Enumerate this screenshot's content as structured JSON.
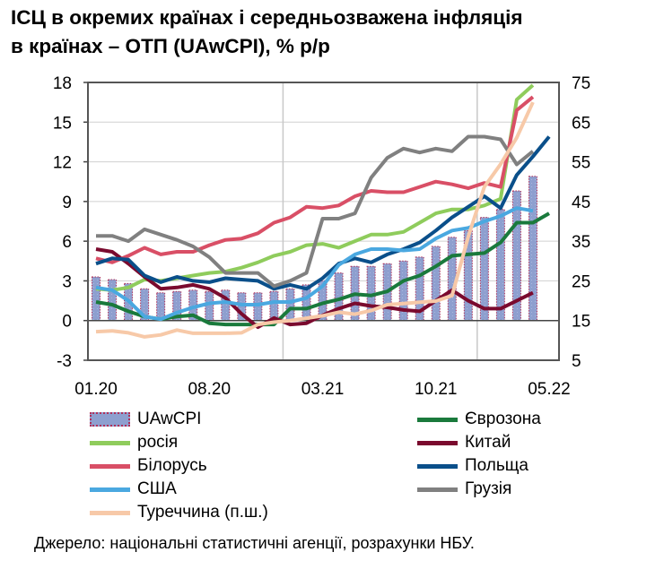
{
  "title_line1": "ІСЦ в окремих країнах і середньозважена інфляція",
  "title_line2": "в країнах – ОТП (UAwCPI), % р/р",
  "source": "Джерело: національні статистичні агенції, розрахунки НБУ.",
  "chart_data": {
    "type": "bar+line",
    "title": "ІСЦ в окремих країнах і середньозважена інфляція в країнах – ОТП (UAwCPI), % р/р",
    "x_tick_labels": [
      "01.20",
      "08.20",
      "03.21",
      "10.21",
      "05.22"
    ],
    "months": [
      "01.20",
      "02.20",
      "03.20",
      "04.20",
      "05.20",
      "06.20",
      "07.20",
      "08.20",
      "09.20",
      "10.20",
      "11.20",
      "12.20",
      "01.21",
      "02.21",
      "03.21",
      "04.21",
      "05.21",
      "06.21",
      "07.21",
      "08.21",
      "09.21",
      "10.21",
      "11.21",
      "12.21",
      "01.22",
      "02.22",
      "03.22",
      "04.22",
      "05.22"
    ],
    "left_axis": {
      "range": [
        -3,
        18
      ],
      "ticks": [
        -3,
        0,
        3,
        6,
        9,
        12,
        15,
        18
      ]
    },
    "right_axis": {
      "range": [
        5,
        75
      ],
      "ticks": [
        5,
        15,
        25,
        35,
        45,
        55,
        65,
        75
      ]
    },
    "grid": true,
    "legend_position": "bottom",
    "series": [
      {
        "name": "UAwCPI",
        "kind": "bar",
        "axis": "left",
        "color": "#8e9fcf",
        "values": [
          3.3,
          3.1,
          2.8,
          2.4,
          2.1,
          2.2,
          2.3,
          2.2,
          2.3,
          2.1,
          2.1,
          2.2,
          2.4,
          2.7,
          3.0,
          3.6,
          4.1,
          4.1,
          4.3,
          4.5,
          4.8,
          5.6,
          6.3,
          6.8,
          7.8,
          8.4,
          9.8,
          10.9
        ]
      },
      {
        "name": "Єврозона",
        "kind": "line",
        "axis": "left",
        "color": "#1a7a3c",
        "values": [
          1.4,
          1.2,
          0.7,
          0.3,
          0.1,
          0.3,
          0.4,
          -0.2,
          -0.3,
          -0.3,
          -0.3,
          -0.3,
          0.9,
          0.9,
          1.3,
          1.6,
          2.0,
          1.9,
          2.2,
          3.0,
          3.4,
          4.1,
          4.9,
          5.0,
          5.1,
          5.9,
          7.4,
          7.4,
          8.1
        ]
      },
      {
        "name": "росія",
        "kind": "line",
        "axis": "left",
        "color": "#8fcc5c",
        "values": [
          2.4,
          2.3,
          2.5,
          3.1,
          3.0,
          3.2,
          3.4,
          3.6,
          3.7,
          4.0,
          4.4,
          4.9,
          5.2,
          5.7,
          5.8,
          5.5,
          6.0,
          6.5,
          6.5,
          6.7,
          7.4,
          8.1,
          8.4,
          8.4,
          8.7,
          9.2,
          16.7,
          17.8
        ]
      },
      {
        "name": "Китай",
        "kind": "line",
        "axis": "left",
        "color": "#7a0a2e",
        "values": [
          5.4,
          5.2,
          4.3,
          3.3,
          2.4,
          2.5,
          2.7,
          2.4,
          1.7,
          0.5,
          -0.5,
          0.2,
          -0.3,
          -0.2,
          0.4,
          0.9,
          1.3,
          1.1,
          1.0,
          0.8,
          0.7,
          1.5,
          2.3,
          1.5,
          0.9,
          0.9,
          1.5,
          2.1
        ]
      },
      {
        "name": "Білорусь",
        "kind": "line",
        "axis": "left",
        "color": "#d94f66",
        "values": [
          4.7,
          4.4,
          4.9,
          5.5,
          5.0,
          5.2,
          5.2,
          5.7,
          6.1,
          6.2,
          6.6,
          7.4,
          7.8,
          8.6,
          8.5,
          8.7,
          9.4,
          9.8,
          9.7,
          9.7,
          10.1,
          10.5,
          10.3,
          10.0,
          10.4,
          10.1,
          15.9,
          16.9
        ]
      },
      {
        "name": "Польща",
        "kind": "line",
        "axis": "left",
        "color": "#0a4f8a",
        "values": [
          4.3,
          4.7,
          4.6,
          3.4,
          2.9,
          3.3,
          3.0,
          2.9,
          3.2,
          3.1,
          3.0,
          2.4,
          2.7,
          2.4,
          3.2,
          4.3,
          4.7,
          4.4,
          5.0,
          5.4,
          5.9,
          6.8,
          7.8,
          8.6,
          9.4,
          8.5,
          11.0,
          12.4,
          13.9
        ]
      },
      {
        "name": "США",
        "kind": "line",
        "axis": "left",
        "color": "#4aa8e0",
        "values": [
          2.5,
          2.3,
          1.5,
          0.3,
          0.1,
          0.6,
          1.0,
          1.3,
          1.4,
          1.2,
          1.2,
          1.4,
          1.4,
          1.7,
          2.6,
          4.2,
          5.0,
          5.4,
          5.4,
          5.3,
          5.4,
          6.2,
          6.8,
          7.0,
          7.5,
          7.9,
          8.5,
          8.3
        ]
      },
      {
        "name": "Грузія",
        "kind": "line",
        "axis": "left",
        "color": "#808080",
        "values": [
          6.4,
          6.4,
          6.0,
          6.9,
          6.5,
          6.1,
          5.6,
          4.8,
          3.6,
          3.6,
          3.6,
          2.6,
          3.0,
          3.6,
          7.7,
          7.7,
          8.1,
          10.8,
          12.3,
          13.0,
          12.7,
          13.0,
          12.8,
          13.9,
          13.9,
          13.7,
          11.8,
          12.8
        ]
      },
      {
        "name": "Туреччина (п.ш.)",
        "kind": "line",
        "axis": "right",
        "color": "#f7c9a8",
        "values": [
          12.2,
          12.4,
          11.9,
          10.9,
          11.4,
          12.6,
          11.8,
          11.8,
          11.8,
          11.9,
          14.0,
          14.6,
          15.0,
          15.6,
          16.2,
          17.1,
          16.6,
          17.5,
          19.0,
          19.3,
          19.6,
          19.9,
          21.3,
          36.1,
          48.7,
          54.4,
          61.1,
          70.0
        ]
      }
    ]
  }
}
